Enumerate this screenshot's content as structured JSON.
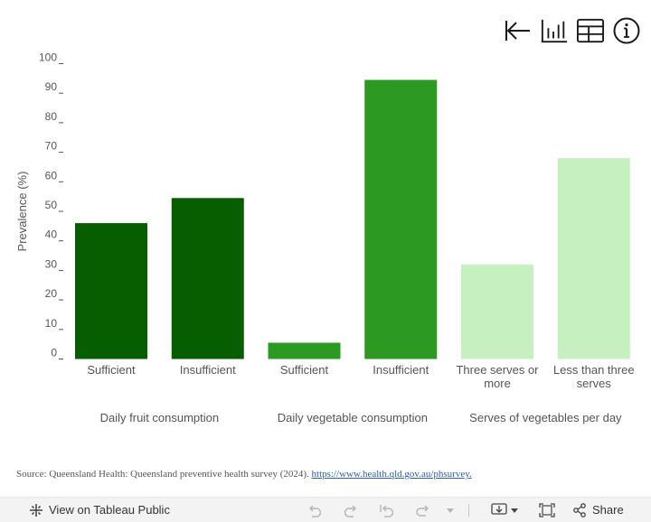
{
  "toolbar": {
    "icons": [
      "revert-to-start-icon",
      "bar-chart-icon",
      "table-view-icon",
      "info-icon"
    ]
  },
  "chart_data": {
    "type": "bar",
    "title": "",
    "xlabel": "",
    "ylabel": "Prevalence (%)",
    "ylim": [
      0,
      100
    ],
    "yticks": [
      0,
      10,
      20,
      30,
      40,
      50,
      60,
      70,
      80,
      90,
      100
    ],
    "grid": false,
    "groups": [
      {
        "label": "Daily fruit consumption",
        "color": "#075e00",
        "bars": [
          {
            "category": [
              "Sufficient"
            ],
            "value": 46
          },
          {
            "category": [
              "Insufficient"
            ],
            "value": 54.5
          }
        ]
      },
      {
        "label": "Daily vegetable consumption",
        "color": "#2c9a22",
        "bars": [
          {
            "category": [
              "Sufficient"
            ],
            "value": 5.5
          },
          {
            "category": [
              "Insufficient"
            ],
            "value": 94.5
          }
        ]
      },
      {
        "label": "Serves of vegetables per day",
        "color": "#c6f0c0",
        "bars": [
          {
            "category": [
              "Three serves or",
              "more"
            ],
            "value": 32
          },
          {
            "category": [
              "Less than three",
              "serves"
            ],
            "value": 68
          }
        ]
      }
    ]
  },
  "source": {
    "text": "Source: Queensland Health: Queensland preventive health survey (2024).",
    "link": "https://www.health.qld.gov.au/phsurvey."
  },
  "bottom_bar": {
    "tableau_label": "View on Tableau Public",
    "share_label": "Share"
  }
}
